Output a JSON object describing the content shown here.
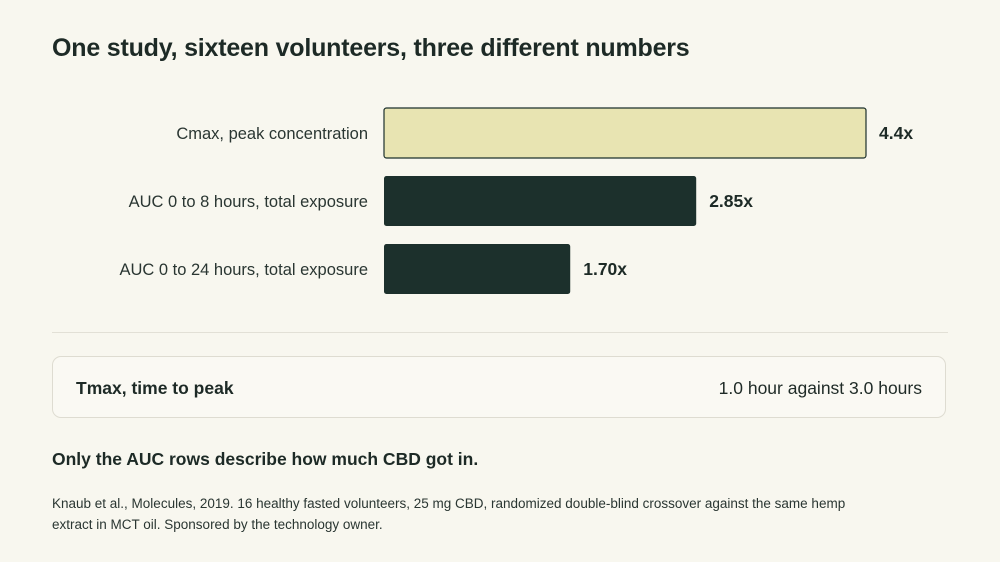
{
  "title": "One study, sixteen volunteers, three different numbers",
  "chart_data": {
    "type": "bar",
    "orientation": "horizontal",
    "categories": [
      "Cmax, peak concentration",
      "AUC 0 to 8 hours, total exposure",
      "AUC 0 to 24 hours, total exposure"
    ],
    "values": [
      4.4,
      2.85,
      1.7
    ],
    "value_labels": [
      "4.4x",
      "2.85x",
      "1.70x"
    ],
    "colors": [
      "#e8e4b2",
      "#1c302c",
      "#1c302c"
    ],
    "highlight_stroke": "#1c302c",
    "xlim": [
      0,
      4.4
    ],
    "grid": false
  },
  "tmax": {
    "label": "Tmax, time to peak",
    "value": "1.0 hour against 3.0 hours"
  },
  "takeaway": "Only the AUC rows describe how much CBD got in.",
  "source": "Knaub et al., Molecules, 2019. 16 healthy fasted volunteers, 25 mg CBD, randomized double-blind crossover against the same hemp extract in MCT oil. Sponsored by the technology owner."
}
